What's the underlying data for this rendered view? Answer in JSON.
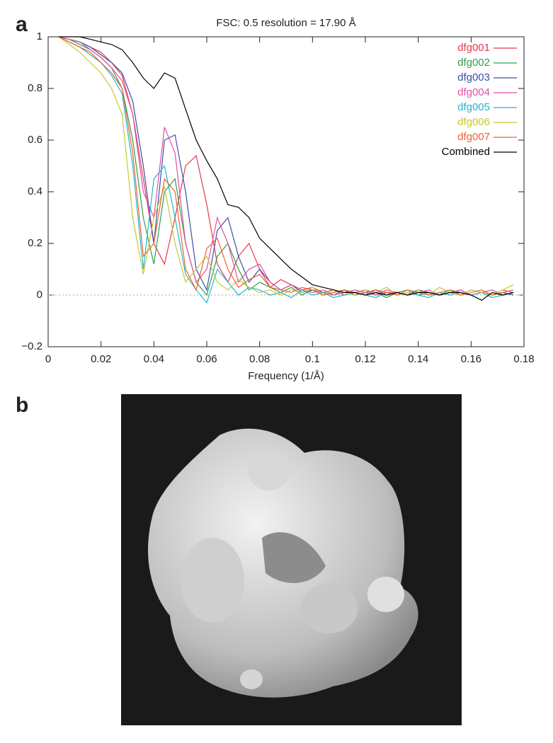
{
  "panel_labels": [
    "a",
    "b"
  ],
  "chart_data": {
    "type": "line",
    "title": "FSC: 0.5 resolution = 17.90 Å",
    "xlabel": "Frequency (1/Å)",
    "x": [
      0.004,
      0.008,
      0.012,
      0.016,
      0.02,
      0.024,
      0.028,
      0.032,
      0.036,
      0.04,
      0.044,
      0.048,
      0.052,
      0.056,
      0.06,
      0.064,
      0.068,
      0.072,
      0.076,
      0.08,
      0.084,
      0.088,
      0.092,
      0.096,
      0.1,
      0.104,
      0.108,
      0.112,
      0.116,
      0.12,
      0.124,
      0.128,
      0.132,
      0.136,
      0.14,
      0.144,
      0.148,
      0.152,
      0.156,
      0.16,
      0.164,
      0.168,
      0.172,
      0.176
    ],
    "series": [
      {
        "name": "dfg001",
        "color": "#e8384f",
        "values": [
          1,
          0.99,
          0.98,
          0.96,
          0.94,
          0.9,
          0.85,
          0.7,
          0.45,
          0.2,
          0.12,
          0.3,
          0.5,
          0.54,
          0.35,
          0.12,
          0.05,
          0.15,
          0.2,
          0.1,
          0.03,
          0.06,
          0.04,
          0.02,
          0.03,
          0.01,
          0.02,
          0.0,
          0.01,
          0.02,
          0.0,
          0.01,
          0.01,
          0.0,
          0.02,
          0.01,
          0.0,
          0.01,
          0.02,
          0.0,
          0.01,
          0.0,
          0.02,
          0.01
        ]
      },
      {
        "name": "dfg002",
        "color": "#2ea04a",
        "values": [
          1,
          0.99,
          0.97,
          0.95,
          0.92,
          0.88,
          0.8,
          0.6,
          0.3,
          0.12,
          0.4,
          0.45,
          0.2,
          0.05,
          0.0,
          0.15,
          0.2,
          0.1,
          0.02,
          0.05,
          0.03,
          0.01,
          0.03,
          0.0,
          0.02,
          0.01,
          0.0,
          0.02,
          0.01,
          0.0,
          0.01,
          -0.01,
          0.01,
          0.02,
          0.0,
          0.01,
          0.0,
          0.02,
          0.01,
          0.0,
          0.01,
          0.02,
          0.0,
          0.01
        ]
      },
      {
        "name": "dfg003",
        "color": "#3a50a8",
        "values": [
          1,
          0.99,
          0.98,
          0.96,
          0.93,
          0.9,
          0.86,
          0.75,
          0.5,
          0.2,
          0.6,
          0.62,
          0.4,
          0.1,
          0.02,
          0.25,
          0.3,
          0.15,
          0.05,
          0.1,
          0.05,
          0.02,
          0.04,
          0.01,
          0.02,
          0.0,
          0.01,
          0.02,
          0.0,
          0.01,
          0.02,
          0.0,
          0.01,
          0.0,
          0.02,
          0.01,
          0.0,
          0.01,
          0.0,
          0.02,
          0.01,
          0.0,
          0.01,
          0.0
        ]
      },
      {
        "name": "dfg004",
        "color": "#e050a0",
        "values": [
          1,
          0.99,
          0.98,
          0.95,
          0.92,
          0.88,
          0.83,
          0.7,
          0.4,
          0.3,
          0.65,
          0.55,
          0.2,
          0.05,
          0.1,
          0.3,
          0.2,
          0.05,
          0.1,
          0.12,
          0.05,
          0.02,
          0.04,
          0.02,
          0.01,
          0.02,
          0.0,
          0.01,
          0.02,
          0.01,
          0.0,
          0.02,
          0.01,
          0.0,
          0.01,
          0.02,
          0.0,
          0.01,
          0.02,
          0.0,
          0.01,
          0.02,
          0.0,
          0.01
        ]
      },
      {
        "name": "dfg005",
        "color": "#20b8d0",
        "values": [
          1,
          0.98,
          0.96,
          0.93,
          0.9,
          0.85,
          0.78,
          0.5,
          0.1,
          0.45,
          0.5,
          0.3,
          0.08,
          0.02,
          -0.03,
          0.1,
          0.05,
          0.0,
          0.03,
          0.02,
          0.0,
          0.01,
          -0.01,
          0.02,
          0.0,
          0.01,
          -0.01,
          0.0,
          0.01,
          0.0,
          -0.01,
          0.01,
          0.0,
          0.01,
          0.0,
          -0.01,
          0.01,
          0.0,
          0.01,
          0.0,
          0.01,
          -0.01,
          0.0,
          0.01
        ]
      },
      {
        "name": "dfg006",
        "color": "#c8c830",
        "values": [
          1,
          0.97,
          0.94,
          0.9,
          0.86,
          0.8,
          0.7,
          0.3,
          0.08,
          0.3,
          0.42,
          0.2,
          0.05,
          0.1,
          0.15,
          0.05,
          0.02,
          0.06,
          0.03,
          0.01,
          0.02,
          0.0,
          0.02,
          0.01,
          0.03,
          0.0,
          0.02,
          0.01,
          0.0,
          0.02,
          0.01,
          0.03,
          0.0,
          0.01,
          0.02,
          0.0,
          0.03,
          0.01,
          0.0,
          0.02,
          0.01,
          0.0,
          0.02,
          0.04
        ]
      },
      {
        "name": "dfg007",
        "color": "#f06030",
        "values": [
          1,
          0.98,
          0.96,
          0.94,
          0.9,
          0.86,
          0.8,
          0.55,
          0.15,
          0.2,
          0.45,
          0.4,
          0.1,
          0.02,
          0.18,
          0.22,
          0.1,
          0.03,
          0.06,
          0.08,
          0.03,
          0.02,
          0.01,
          0.03,
          0.02,
          0.0,
          0.01,
          0.02,
          0.01,
          0.0,
          0.02,
          0.01,
          0.0,
          0.02,
          0.01,
          0.0,
          0.01,
          0.02,
          0.0,
          0.01,
          0.02,
          0.0,
          0.01,
          0.02
        ]
      },
      {
        "name": "Combined",
        "color": "#000000",
        "values": [
          1,
          1,
          1,
          0.99,
          0.98,
          0.97,
          0.95,
          0.9,
          0.84,
          0.8,
          0.86,
          0.84,
          0.72,
          0.6,
          0.52,
          0.45,
          0.35,
          0.34,
          0.3,
          0.22,
          0.18,
          0.14,
          0.1,
          0.07,
          0.04,
          0.03,
          0.02,
          0.01,
          0.01,
          0.0,
          0.01,
          0.0,
          0.01,
          0.0,
          0.01,
          0.01,
          0.0,
          0.01,
          0.01,
          0.0,
          -0.02,
          0.01,
          0.0,
          0.01
        ]
      }
    ],
    "xlim": [
      0,
      0.18
    ],
    "xticks": [
      0,
      0.02,
      0.04,
      0.06,
      0.08,
      0.1,
      0.12,
      0.14,
      0.16,
      0.18
    ],
    "ylim": [
      -0.2,
      1
    ],
    "yticks": [
      {
        "value": -0.2,
        "label": "−0.2"
      },
      0,
      0.2,
      0.4,
      0.6,
      0.8,
      1
    ],
    "zero_line": true,
    "legend": "top-right"
  }
}
